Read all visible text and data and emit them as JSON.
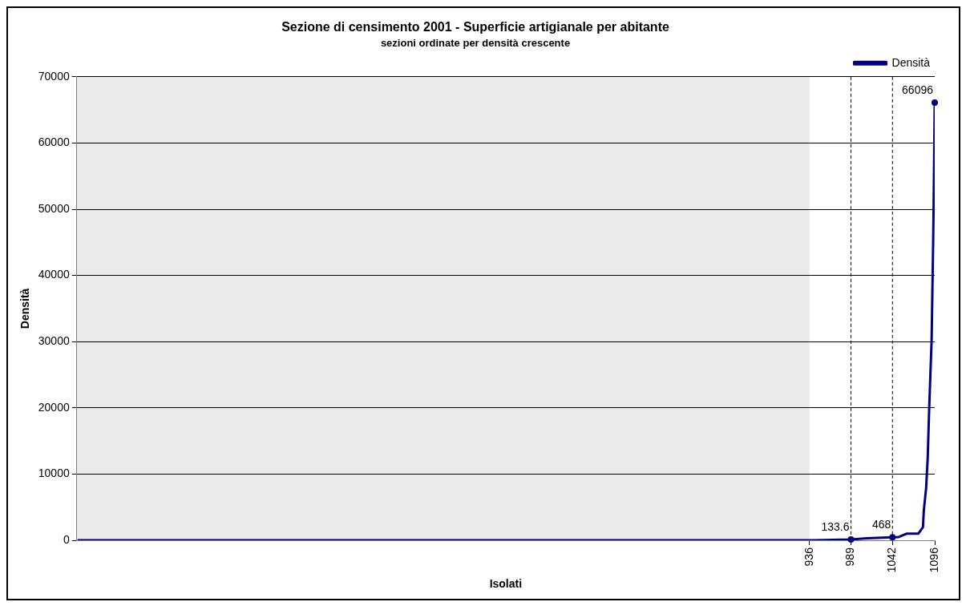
{
  "chart_data": {
    "type": "line",
    "title": "Sezione di censimento 2001 - Superficie artigianale per abitante",
    "subtitle": "sezioni ordinate per densità crescente",
    "xlabel": "Isolati",
    "ylabel": "Densità",
    "x": [
      1,
      200,
      400,
      600,
      800,
      900,
      936,
      989,
      1010,
      1042,
      1050,
      1060,
      1070,
      1075,
      1081,
      1082,
      1085,
      1087,
      1089,
      1092,
      1094,
      1095,
      1096
    ],
    "series": [
      {
        "name": "Densità",
        "color": "#000080",
        "values": [
          0,
          0,
          0,
          0,
          0,
          0,
          0,
          133.6,
          300,
          468,
          500,
          1000,
          1000,
          1000,
          2000,
          4400,
          7900,
          12300,
          20200,
          30100,
          45000,
          55000,
          66096
        ]
      }
    ],
    "xlim": [
      0,
      1096
    ],
    "xticks": [
      936,
      989,
      1042,
      1096
    ],
    "ylim": [
      0,
      70000
    ],
    "yticks": [
      0,
      10000,
      20000,
      30000,
      40000,
      50000,
      60000,
      70000
    ],
    "grid": "y",
    "legend": "top right",
    "marker": "none",
    "line_style": "solid",
    "bands": [
      {
        "axis": "x",
        "from": 0,
        "to": 936,
        "color": "#eaeaea"
      }
    ],
    "ref_lines": [
      {
        "axis": "x",
        "value": 989,
        "line_style": "dashed",
        "color": "#000000"
      },
      {
        "axis": "x",
        "value": 1042,
        "line_style": "dashed",
        "color": "#000000"
      }
    ],
    "annotations": [
      {
        "text": "133.6",
        "x": 989,
        "y": 133.6
      },
      {
        "text": "468",
        "x": 1042,
        "y": 468
      },
      {
        "text": "66096",
        "x": 1096,
        "y": 66096
      }
    ]
  }
}
